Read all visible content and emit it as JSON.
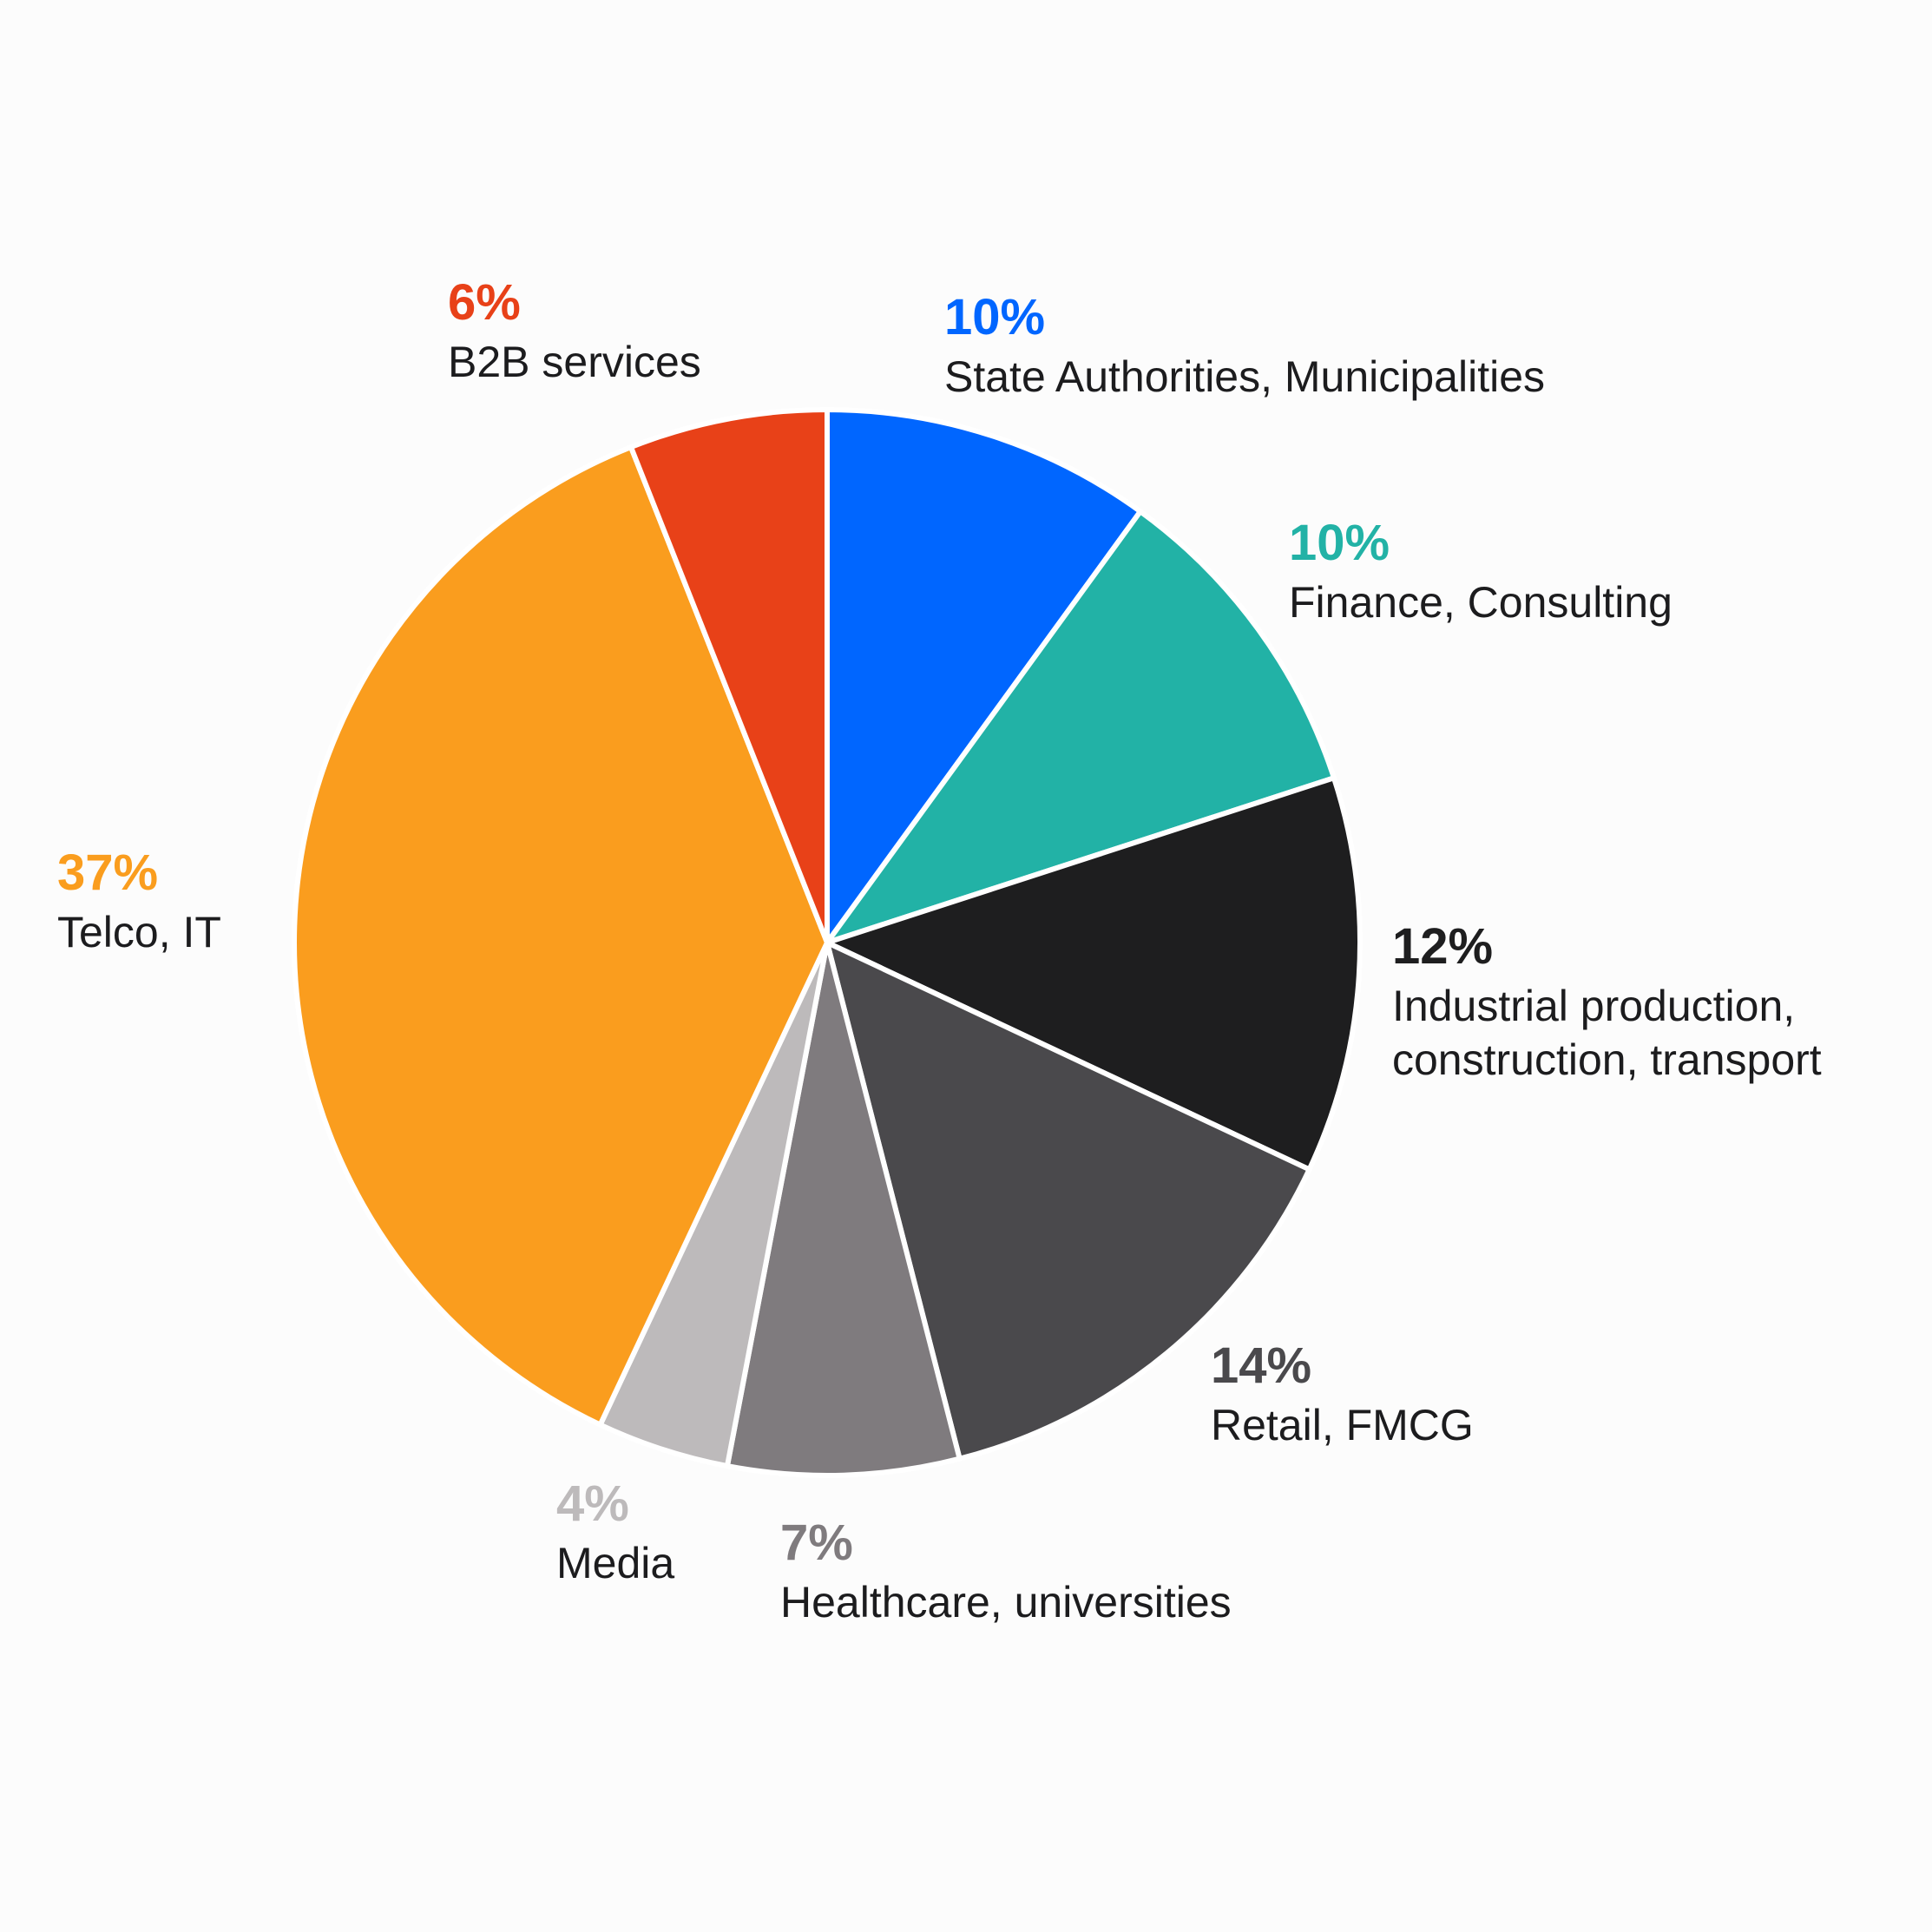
{
  "chart_data": {
    "type": "pie",
    "title": "",
    "start_angle": "12 o'clock",
    "direction": "clockwise",
    "slices": [
      {
        "label": "State Authorities, Municipalities",
        "value": 10,
        "value_label": "10%",
        "color": "#0066ff",
        "label_lines": [
          "State Authorities, Municipalities"
        ]
      },
      {
        "label": "Finance, Consulting",
        "value": 10,
        "value_label": "10%",
        "color": "#22b2a6",
        "label_lines": [
          "Finance, Consulting"
        ]
      },
      {
        "label": "Industrial production, construction, transport",
        "value": 12,
        "value_label": "12%",
        "color": "#1e1e1f",
        "label_lines": [
          "Industrial production,",
          "construction, transport"
        ]
      },
      {
        "label": "Retail, FMCG",
        "value": 14,
        "value_label": "14%",
        "color": "#4a494c",
        "label_lines": [
          "Retail, FMCG"
        ]
      },
      {
        "label": "Healthcare, universities",
        "value": 7,
        "value_label": "7%",
        "color": "#7f7b7e",
        "label_lines": [
          "Healthcare, universities"
        ]
      },
      {
        "label": "Media",
        "value": 4,
        "value_label": "4%",
        "color": "#bdbabb",
        "label_lines": [
          "Media"
        ]
      },
      {
        "label": "Telco, IT",
        "value": 37,
        "value_label": "37%",
        "color": "#fa9d1e",
        "label_lines": [
          "Telco, IT"
        ]
      },
      {
        "label": "B2B services",
        "value": 6,
        "value_label": "6%",
        "color": "#e84118",
        "label_lines": [
          "B2B services"
        ]
      }
    ]
  }
}
